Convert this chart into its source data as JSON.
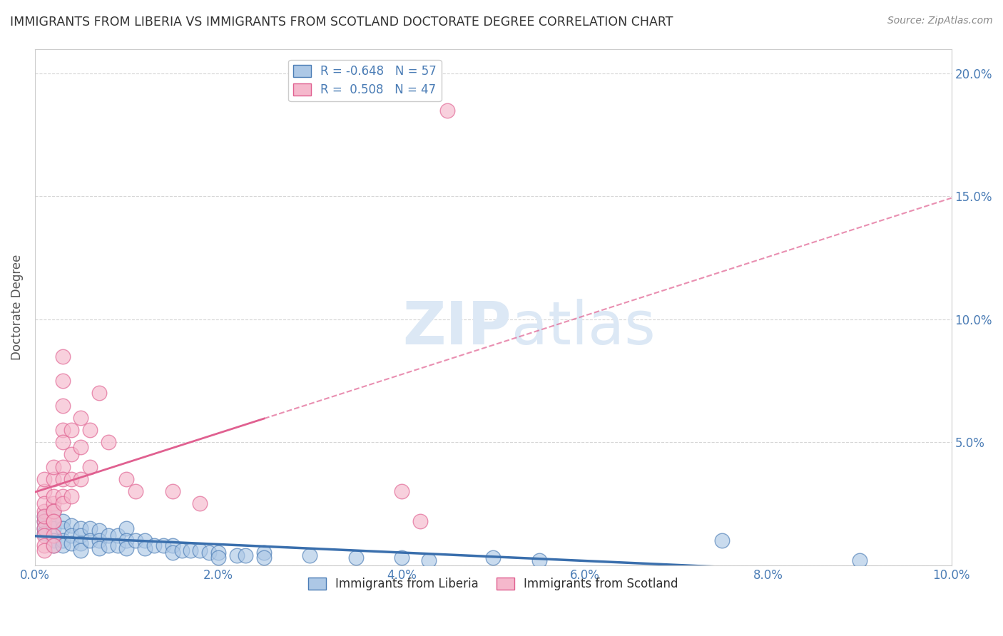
{
  "title": "IMMIGRANTS FROM LIBERIA VS IMMIGRANTS FROM SCOTLAND DOCTORATE DEGREE CORRELATION CHART",
  "source": "Source: ZipAtlas.com",
  "ylabel": "Doctorate Degree",
  "xlim": [
    0.0,
    0.1
  ],
  "ylim": [
    0.0,
    0.21
  ],
  "xtick_vals": [
    0.0,
    0.02,
    0.04,
    0.06,
    0.08,
    0.1
  ],
  "xtick_labels": [
    "0.0%",
    "2.0%",
    "4.0%",
    "6.0%",
    "8.0%",
    "10.0%"
  ],
  "ytick_vals": [
    0.0,
    0.05,
    0.1,
    0.15,
    0.2
  ],
  "ytick_labels": [
    "",
    "5.0%",
    "10.0%",
    "15.0%",
    "20.0%"
  ],
  "legend_R_liberia": "-0.648",
  "legend_N_liberia": "57",
  "legend_R_scotland": "0.508",
  "legend_N_scotland": "47",
  "color_liberia_face": "#adc8e6",
  "color_liberia_edge": "#4a7cb5",
  "color_scotland_face": "#f5b8cc",
  "color_scotland_edge": "#e06090",
  "line_color_liberia": "#3a6fad",
  "line_color_scotland": "#e06090",
  "background_color": "#ffffff",
  "grid_color": "#cccccc",
  "tick_color": "#4a7cb5",
  "ylabel_color": "#555555",
  "title_color": "#333333",
  "source_color": "#888888",
  "liberia_x": [
    0.001,
    0.001,
    0.001,
    0.001,
    0.002,
    0.002,
    0.002,
    0.002,
    0.002,
    0.003,
    0.003,
    0.003,
    0.003,
    0.004,
    0.004,
    0.004,
    0.005,
    0.005,
    0.005,
    0.005,
    0.006,
    0.006,
    0.007,
    0.007,
    0.007,
    0.008,
    0.008,
    0.009,
    0.009,
    0.01,
    0.01,
    0.01,
    0.011,
    0.012,
    0.012,
    0.013,
    0.014,
    0.015,
    0.015,
    0.016,
    0.017,
    0.018,
    0.019,
    0.02,
    0.02,
    0.022,
    0.023,
    0.025,
    0.025,
    0.03,
    0.035,
    0.04,
    0.043,
    0.05,
    0.055,
    0.075,
    0.09
  ],
  "liberia_y": [
    0.02,
    0.018,
    0.015,
    0.013,
    0.022,
    0.018,
    0.015,
    0.01,
    0.008,
    0.018,
    0.015,
    0.01,
    0.008,
    0.016,
    0.012,
    0.009,
    0.015,
    0.012,
    0.009,
    0.006,
    0.015,
    0.01,
    0.014,
    0.01,
    0.007,
    0.012,
    0.008,
    0.012,
    0.008,
    0.015,
    0.01,
    0.007,
    0.01,
    0.01,
    0.007,
    0.008,
    0.008,
    0.008,
    0.005,
    0.006,
    0.006,
    0.006,
    0.005,
    0.005,
    0.003,
    0.004,
    0.004,
    0.005,
    0.003,
    0.004,
    0.003,
    0.003,
    0.002,
    0.003,
    0.002,
    0.01,
    0.002
  ],
  "scotland_x": [
    0.001,
    0.001,
    0.001,
    0.001,
    0.001,
    0.001,
    0.001,
    0.001,
    0.001,
    0.001,
    0.002,
    0.002,
    0.002,
    0.002,
    0.002,
    0.002,
    0.002,
    0.002,
    0.002,
    0.002,
    0.003,
    0.003,
    0.003,
    0.003,
    0.003,
    0.003,
    0.003,
    0.003,
    0.003,
    0.004,
    0.004,
    0.004,
    0.004,
    0.005,
    0.005,
    0.005,
    0.006,
    0.006,
    0.007,
    0.008,
    0.01,
    0.011,
    0.015,
    0.018,
    0.04,
    0.042,
    0.045
  ],
  "scotland_y": [
    0.022,
    0.018,
    0.015,
    0.012,
    0.008,
    0.006,
    0.03,
    0.025,
    0.02,
    0.035,
    0.025,
    0.022,
    0.018,
    0.012,
    0.008,
    0.035,
    0.028,
    0.022,
    0.018,
    0.04,
    0.04,
    0.035,
    0.028,
    0.025,
    0.055,
    0.065,
    0.075,
    0.085,
    0.05,
    0.045,
    0.055,
    0.035,
    0.028,
    0.06,
    0.048,
    0.035,
    0.055,
    0.04,
    0.07,
    0.05,
    0.035,
    0.03,
    0.03,
    0.025,
    0.03,
    0.018,
    0.185
  ]
}
